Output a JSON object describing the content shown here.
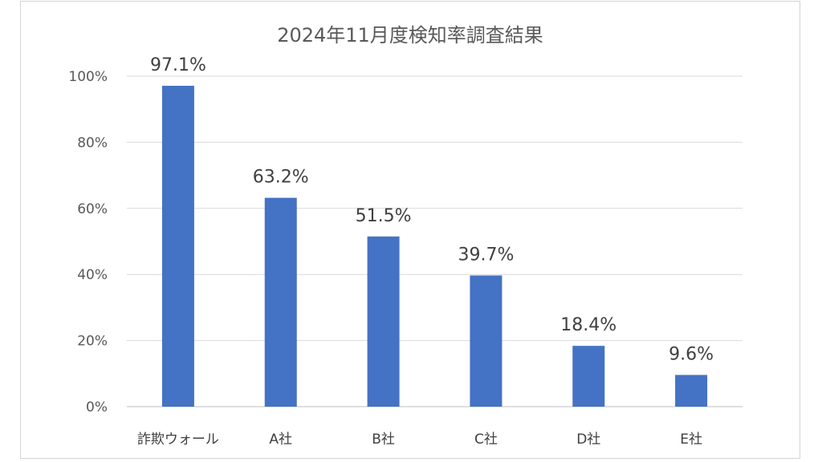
{
  "chart_data": {
    "type": "bar",
    "title": "2024年11月度検知率調査結果",
    "categories": [
      "詐欺ウォール",
      "A社",
      "B社",
      "C社",
      "D社",
      "E社"
    ],
    "values": [
      97.1,
      63.2,
      51.5,
      39.7,
      18.4,
      9.6
    ],
    "data_labels": [
      "97.1%",
      "63.2%",
      "51.5%",
      "39.7%",
      "18.4%",
      "9.6%"
    ],
    "xlabel": "",
    "ylabel": "",
    "ylim": [
      0,
      100
    ],
    "yticks": [
      0,
      20,
      40,
      60,
      80,
      100
    ],
    "ytick_labels": [
      "0%",
      "20%",
      "40%",
      "60%",
      "80%",
      "100%"
    ],
    "grid": true,
    "legend": "none",
    "bar_color": "#4472C4",
    "grid_color": "#D9D9D9"
  }
}
